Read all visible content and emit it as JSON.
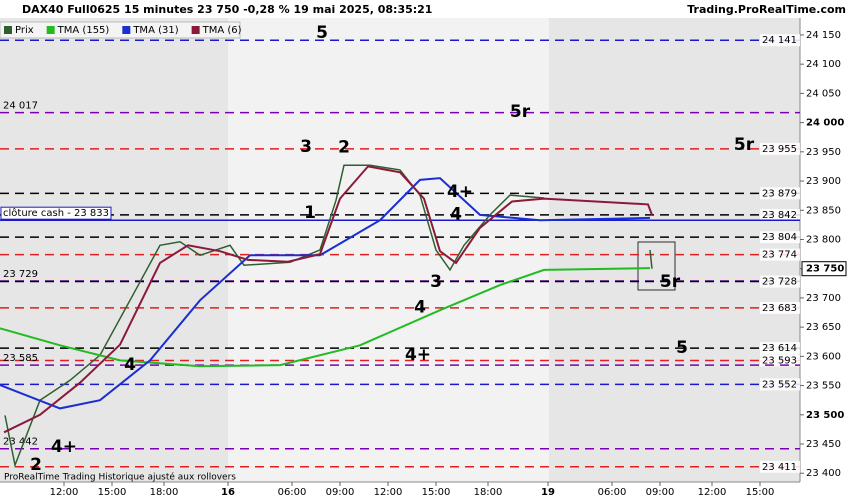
{
  "chart_data": {
    "type": "line",
    "title": "DAX40 Full0625 15 minutes 23 750 -0,28 % 19 mai 2025, 08:35:21",
    "source": "Trading.ProRealTime.com",
    "footer": "ProRealTime Trading  Historique ajusté aux rollovers",
    "xlim": [
      0,
      200
    ],
    "xticks": [
      {
        "value": 16,
        "label": "12:00"
      },
      {
        "value": 28,
        "label": "15:00"
      },
      {
        "value": 41,
        "label": "18:00"
      },
      {
        "value": 57,
        "label": "16"
      },
      {
        "value": 73,
        "label": "06:00"
      },
      {
        "value": 85,
        "label": "09:00"
      },
      {
        "value": 97,
        "label": "12:00"
      },
      {
        "value": 109,
        "label": "15:00"
      },
      {
        "value": 122,
        "label": "18:00"
      },
      {
        "value": 137,
        "label": "19"
      },
      {
        "value": 153,
        "label": "06:00"
      },
      {
        "value": 165,
        "label": "09:00"
      },
      {
        "value": 178,
        "label": "12:00"
      },
      {
        "value": 190,
        "label": "15:00"
      }
    ],
    "ylim": [
      23385,
      24179
    ],
    "yticks": [
      {
        "value": 23400,
        "label": "23 400"
      },
      {
        "value": 23450,
        "label": "23 450"
      },
      {
        "value": 23500,
        "label": "23 500"
      },
      {
        "value": 23550,
        "label": "23 550"
      },
      {
        "value": 23600,
        "label": "23 600"
      },
      {
        "value": 23650,
        "label": "23 650"
      },
      {
        "value": 23700,
        "label": "23 700"
      },
      {
        "value": 23750,
        "label": "23 750"
      },
      {
        "value": 23800,
        "label": "23 800"
      },
      {
        "value": 23850,
        "label": "23 850"
      },
      {
        "value": 23900,
        "label": "23 900"
      },
      {
        "value": 23950,
        "label": "23 950"
      },
      {
        "value": 24000,
        "label": "24 000"
      },
      {
        "value": 24050,
        "label": "24 050"
      },
      {
        "value": 24100,
        "label": "24 100"
      },
      {
        "value": 24150,
        "label": "24 150"
      }
    ],
    "series": [
      {
        "name": "Prix",
        "color": "#2f5f2f",
        "x": [
          1.25,
          3.75,
          10,
          17.5,
          25,
          32.5,
          40,
          45,
          50,
          57.5,
          61,
          72.5,
          80,
          84,
          86,
          92.5,
          100,
          105,
          109,
          112.5,
          116,
          122.5,
          127.5,
          136,
          137,
          162.5,
          163
        ],
        "values": [
          23499,
          23414,
          23525,
          23559,
          23602,
          23696,
          23790,
          23796,
          23773,
          23790,
          23756,
          23761,
          23782,
          23867,
          23927,
          23927,
          23919,
          23876,
          23782,
          23748,
          23790,
          23842,
          23876,
          23871,
          null,
          23782,
          23750
        ]
      },
      {
        "name": "TMA (155)",
        "color": "#22bb22",
        "x": [
          0,
          15,
          30,
          50,
          70,
          90,
          110,
          125,
          136,
          162.5
        ],
        "values": [
          23648,
          23619,
          23593,
          23583,
          23585,
          23619,
          23679,
          23722,
          23748,
          23751
        ]
      },
      {
        "name": "TMA (31)",
        "color": "#1a2fd0",
        "x": [
          0,
          15,
          25,
          37.5,
          50,
          62.5,
          80,
          95,
          105,
          110,
          120,
          135,
          162.5
        ],
        "values": [
          23551,
          23511,
          23525,
          23593,
          23696,
          23773,
          23773,
          23833,
          23902,
          23905,
          23842,
          23833,
          23837
        ]
      },
      {
        "name": "TMA (6)",
        "color": "#8b1a3a",
        "x": [
          1,
          10,
          20,
          30,
          40,
          47,
          55,
          62,
          72,
          80,
          85,
          92,
          100,
          106,
          110,
          114,
          120,
          128,
          136,
          162,
          163
        ],
        "values": [
          23470,
          23500,
          23555,
          23620,
          23760,
          23790,
          23780,
          23765,
          23762,
          23775,
          23870,
          23925,
          23915,
          23870,
          23780,
          23760,
          23820,
          23865,
          23870,
          23860,
          23842
        ]
      }
    ],
    "last_price": {
      "value": 23750,
      "label": "23 750"
    },
    "levels": [
      {
        "value": 24141,
        "label": "24 141",
        "color": "#1a1acc",
        "side": "right",
        "dashed": true
      },
      {
        "value": 24017,
        "label": "24 017",
        "color": "#7b00b4",
        "side": "left",
        "dashed": true
      },
      {
        "value": 23955,
        "label": "23 955",
        "color": "#e02020",
        "side": "right",
        "dashed": true
      },
      {
        "value": 23879,
        "label": "23 879",
        "color": "#000000",
        "side": "right",
        "dashed": true
      },
      {
        "value": 23842,
        "label": "23 842",
        "color": "#000000",
        "side": "right",
        "dashed": true
      },
      {
        "value": 23833,
        "label": "clôture cash - 23 833",
        "color": "#1a1acc",
        "side": "left",
        "dashed": false
      },
      {
        "value": 23804,
        "label": "23 804",
        "color": "#000000",
        "side": "right",
        "dashed": true
      },
      {
        "value": 23774,
        "label": "23 774",
        "color": "#e02020",
        "side": "right",
        "dashed": true
      },
      {
        "value": 23729,
        "label": "23 729",
        "color": "#7b00b4",
        "side": "left",
        "dashed": true
      },
      {
        "value": 23728,
        "label": "23 728",
        "color": "#000000",
        "side": "right",
        "dashed": true
      },
      {
        "value": 23683,
        "label": "23 683",
        "color": "#e02020",
        "side": "right",
        "dashed": true
      },
      {
        "value": 23614,
        "label": "23 614",
        "color": "#000000",
        "side": "right",
        "dashed": true
      },
      {
        "value": 23593,
        "label": "23 593",
        "color": "#e02020",
        "side": "right",
        "dashed": true
      },
      {
        "value": 23585,
        "label": "23 585",
        "color": "#7b00b4",
        "side": "left",
        "dashed": true
      },
      {
        "value": 23552,
        "label": "23 552",
        "color": "#1a1acc",
        "side": "right",
        "dashed": true
      },
      {
        "value": 23442,
        "label": "23 442",
        "color": "#7b00b4",
        "side": "left",
        "dashed": true
      },
      {
        "value": 23411,
        "label": "23 411",
        "color": "#e02020",
        "side": "right",
        "dashed": true
      }
    ],
    "annotations": [
      {
        "text": "5",
        "x": 80.5,
        "y": 24153,
        "color": "#1a1acc"
      },
      {
        "text": "5r",
        "x": 130,
        "y": 24018,
        "color": "#7b00b4"
      },
      {
        "text": "3",
        "x": 76.5,
        "y": 23958,
        "color": "#e03030"
      },
      {
        "text": "5r",
        "x": 186,
        "y": 23962,
        "color": "#e03030"
      },
      {
        "text": "2",
        "x": 86,
        "y": 23957,
        "color": "#000000"
      },
      {
        "text": "4+",
        "x": 115,
        "y": 23881,
        "color": "#000000"
      },
      {
        "text": "4",
        "x": 114,
        "y": 23843,
        "color": "#000000"
      },
      {
        "text": "1",
        "x": 77.5,
        "y": 23845,
        "color": "#000000"
      },
      {
        "text": "3",
        "x": 109,
        "y": 23727,
        "color": "#000000"
      },
      {
        "text": "5r",
        "x": 167.5,
        "y": 23727,
        "color": "#000000"
      },
      {
        "text": "4",
        "x": 105,
        "y": 23684,
        "color": "#e03030"
      },
      {
        "text": "5",
        "x": 170.5,
        "y": 23614,
        "color": "#000000"
      },
      {
        "text": "4+",
        "x": 104.5,
        "y": 23602,
        "color": "#e03030"
      },
      {
        "text": "4",
        "x": 32.5,
        "y": 23585,
        "color": "#7b00b4"
      },
      {
        "text": "4+",
        "x": 16,
        "y": 23445,
        "color": "#7b00b4"
      },
      {
        "text": "2",
        "x": 9,
        "y": 23414,
        "color": "#e03030"
      }
    ]
  }
}
